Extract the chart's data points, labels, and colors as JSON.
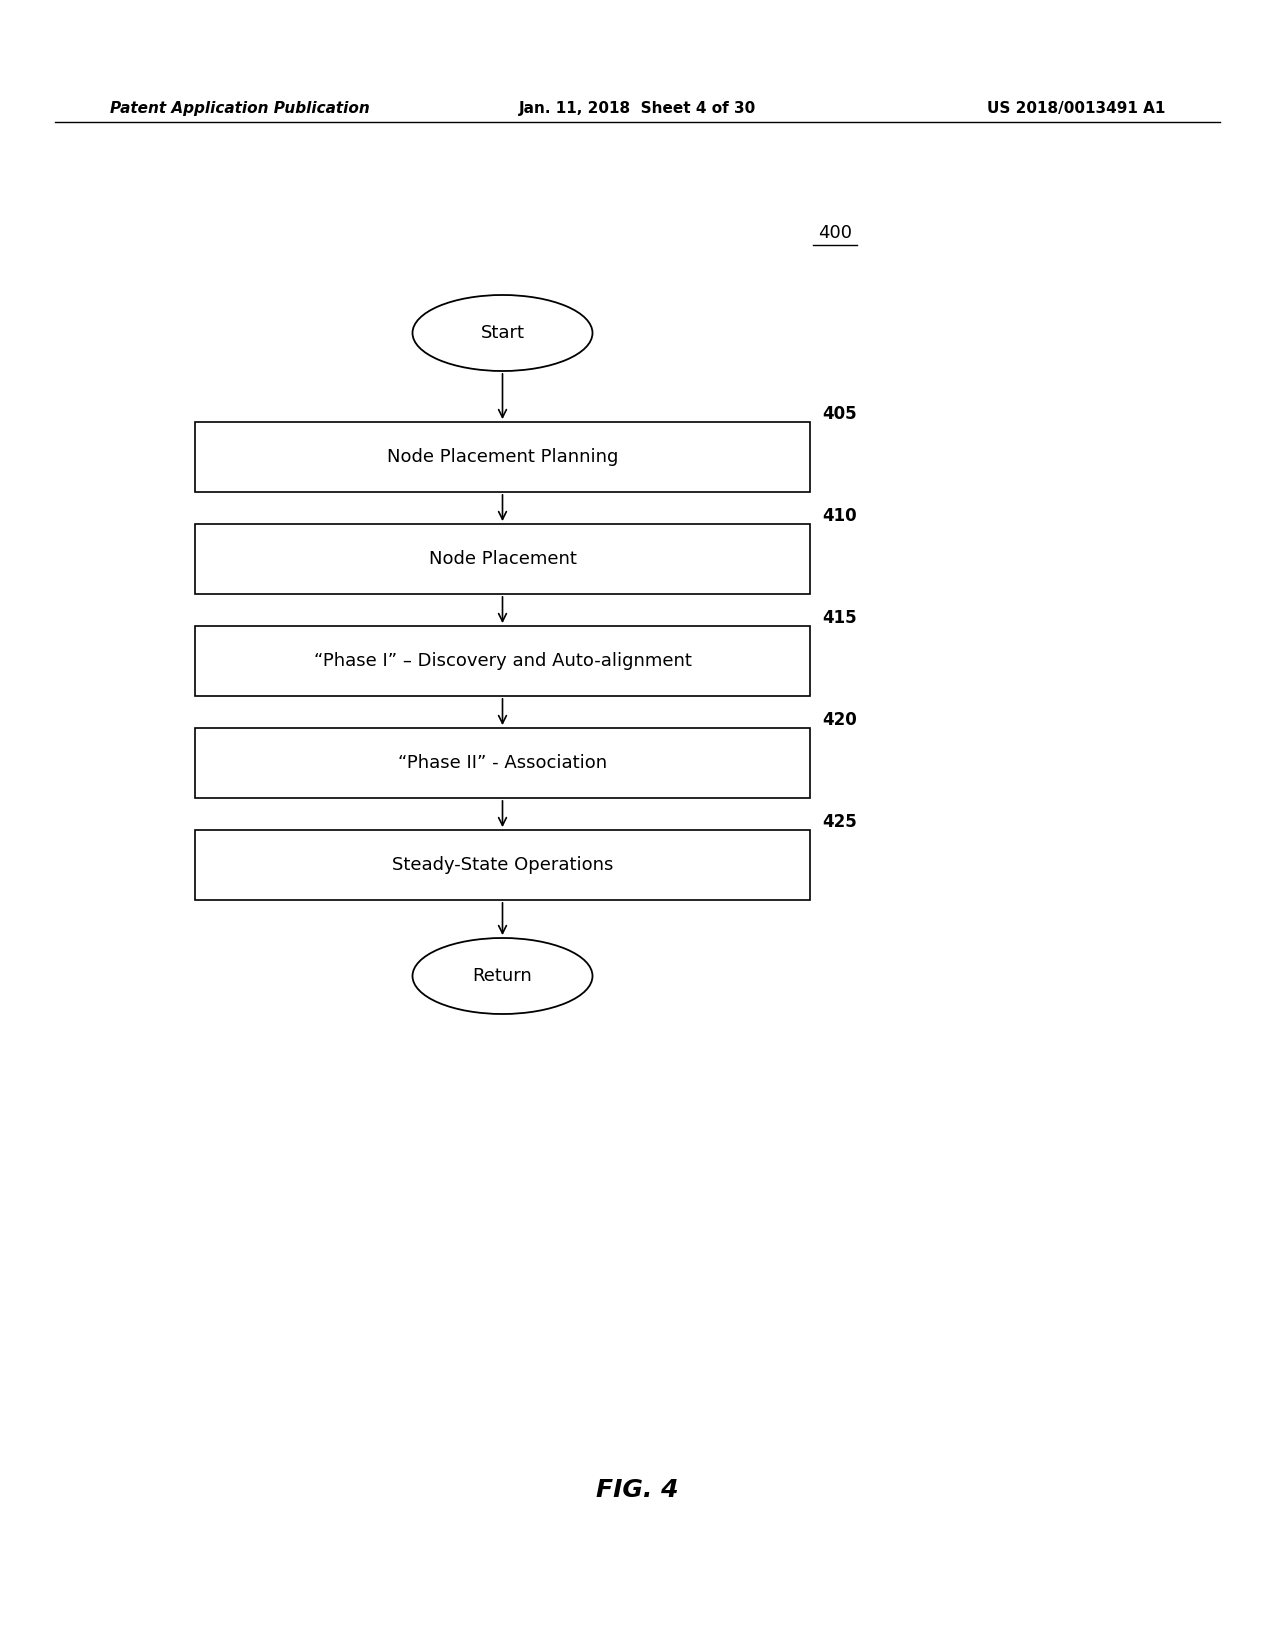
{
  "header_left": "Patent Application Publication",
  "header_mid": "Jan. 11, 2018  Sheet 4 of 30",
  "header_right": "US 2018/0013491 A1",
  "fig_label": "FIG. 4",
  "diagram_number": "400",
  "start_label": "Start",
  "return_label": "Return",
  "boxes": [
    {
      "label": "Node Placement Planning",
      "number": "405"
    },
    {
      "label": "Node Placement",
      "number": "410"
    },
    {
      "label": "“Phase I” – Discovery and Auto-alignment",
      "number": "415"
    },
    {
      "label": "“Phase II” - Association",
      "number": "420"
    },
    {
      "label": "Steady-State Operations",
      "number": "425"
    }
  ],
  "line_color": "#000000",
  "box_edge_color": "#000000",
  "bg_color": "#ffffff",
  "text_color": "#000000"
}
